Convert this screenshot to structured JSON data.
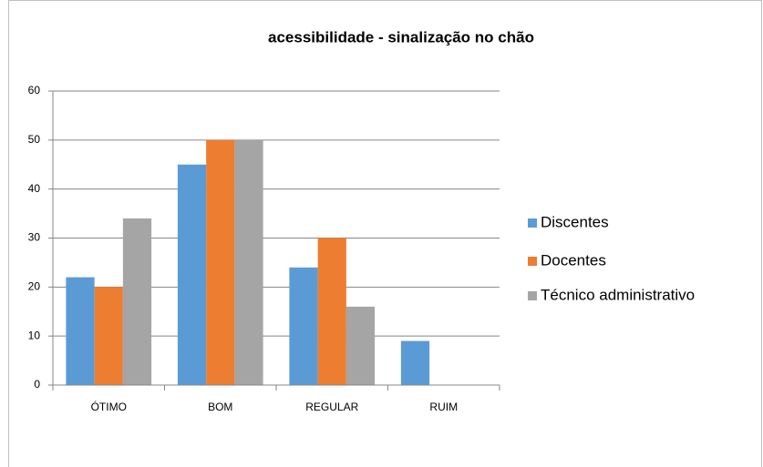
{
  "chart_data": {
    "type": "bar",
    "title": "acessibilidade - sinalização no chão",
    "categories": [
      "ÓTIMO",
      "BOM",
      "REGULAR",
      "RUIM"
    ],
    "series": [
      {
        "name": "Discentes",
        "color": "#5b9bd5",
        "values": [
          22,
          45,
          24,
          9
        ]
      },
      {
        "name": "Docentes",
        "color": "#ed7d31",
        "values": [
          20,
          50,
          30,
          0
        ]
      },
      {
        "name": "Técnico administrativo",
        "color": "#a5a5a5",
        "values": [
          34,
          50,
          16,
          0
        ]
      }
    ],
    "ylim": [
      0,
      60
    ],
    "yticks": [
      0,
      10,
      20,
      30,
      40,
      50,
      60
    ],
    "grid": true,
    "legend": "right"
  }
}
